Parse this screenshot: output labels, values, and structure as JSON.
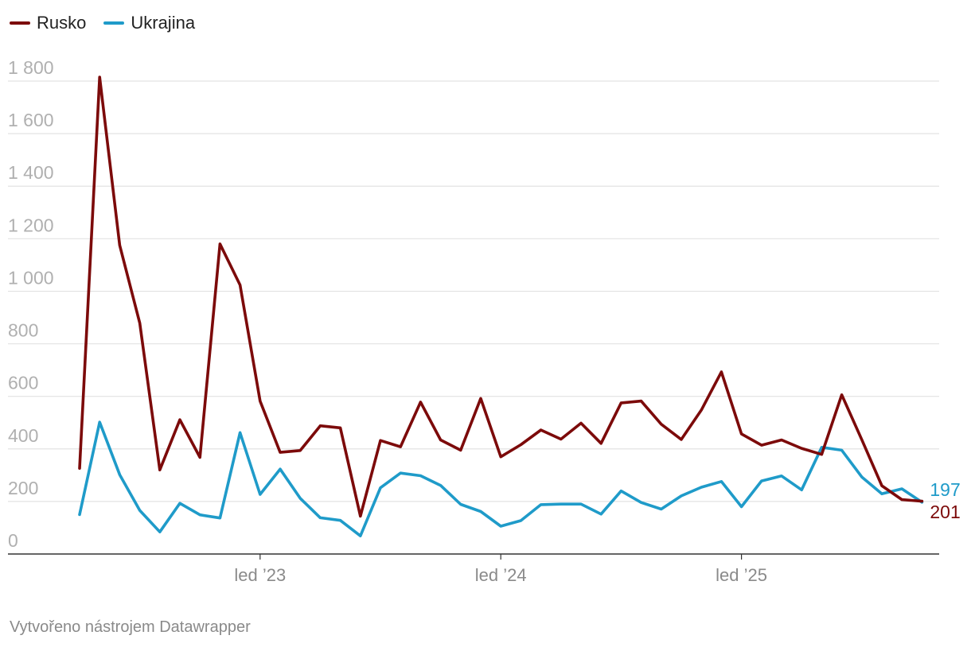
{
  "chart_data": {
    "type": "line",
    "title": "",
    "xlabel": "",
    "ylabel": "",
    "ylim": [
      0,
      1800
    ],
    "yticks": [
      0,
      200,
      400,
      600,
      800,
      1000,
      1200,
      1400,
      1600,
      1800
    ],
    "ytick_labels": [
      "0",
      "200",
      "400",
      "600",
      "800",
      "1 000",
      "1 200",
      "1 400",
      "1 600",
      "1 800"
    ],
    "x_start": "2022-03",
    "x_ticks": [
      {
        "index": 9,
        "label": "led ’23"
      },
      {
        "index": 21,
        "label": "led ’24"
      },
      {
        "index": 33,
        "label": "led ’25"
      }
    ],
    "series": [
      {
        "name": "Rusko",
        "color": "#7c0a0a",
        "values": [
          326,
          1815,
          1175,
          879,
          320,
          511,
          368,
          1180,
          1024,
          582,
          387,
          394,
          488,
          480,
          144,
          432,
          408,
          578,
          434,
          395,
          592,
          370,
          416,
          472,
          437,
          498,
          421,
          575,
          582,
          494,
          436,
          548,
          693,
          457,
          414,
          434,
          402,
          379,
          606,
          435,
          260,
          207,
          201
        ],
        "end_label": "201"
      },
      {
        "name": "Ukrajina",
        "color": "#1f9bc9",
        "values": [
          150,
          502,
          302,
          166,
          84,
          193,
          149,
          137,
          462,
          227,
          323,
          212,
          138,
          128,
          69,
          252,
          308,
          298,
          261,
          189,
          162,
          106,
          127,
          188,
          190,
          190,
          152,
          240,
          196,
          171,
          221,
          254,
          276,
          180,
          278,
          297,
          244,
          406,
          395,
          293,
          229,
          248,
          197
        ],
        "end_label": "197"
      }
    ]
  },
  "footer": "Vytvořeno nástrojem Datawrapper"
}
